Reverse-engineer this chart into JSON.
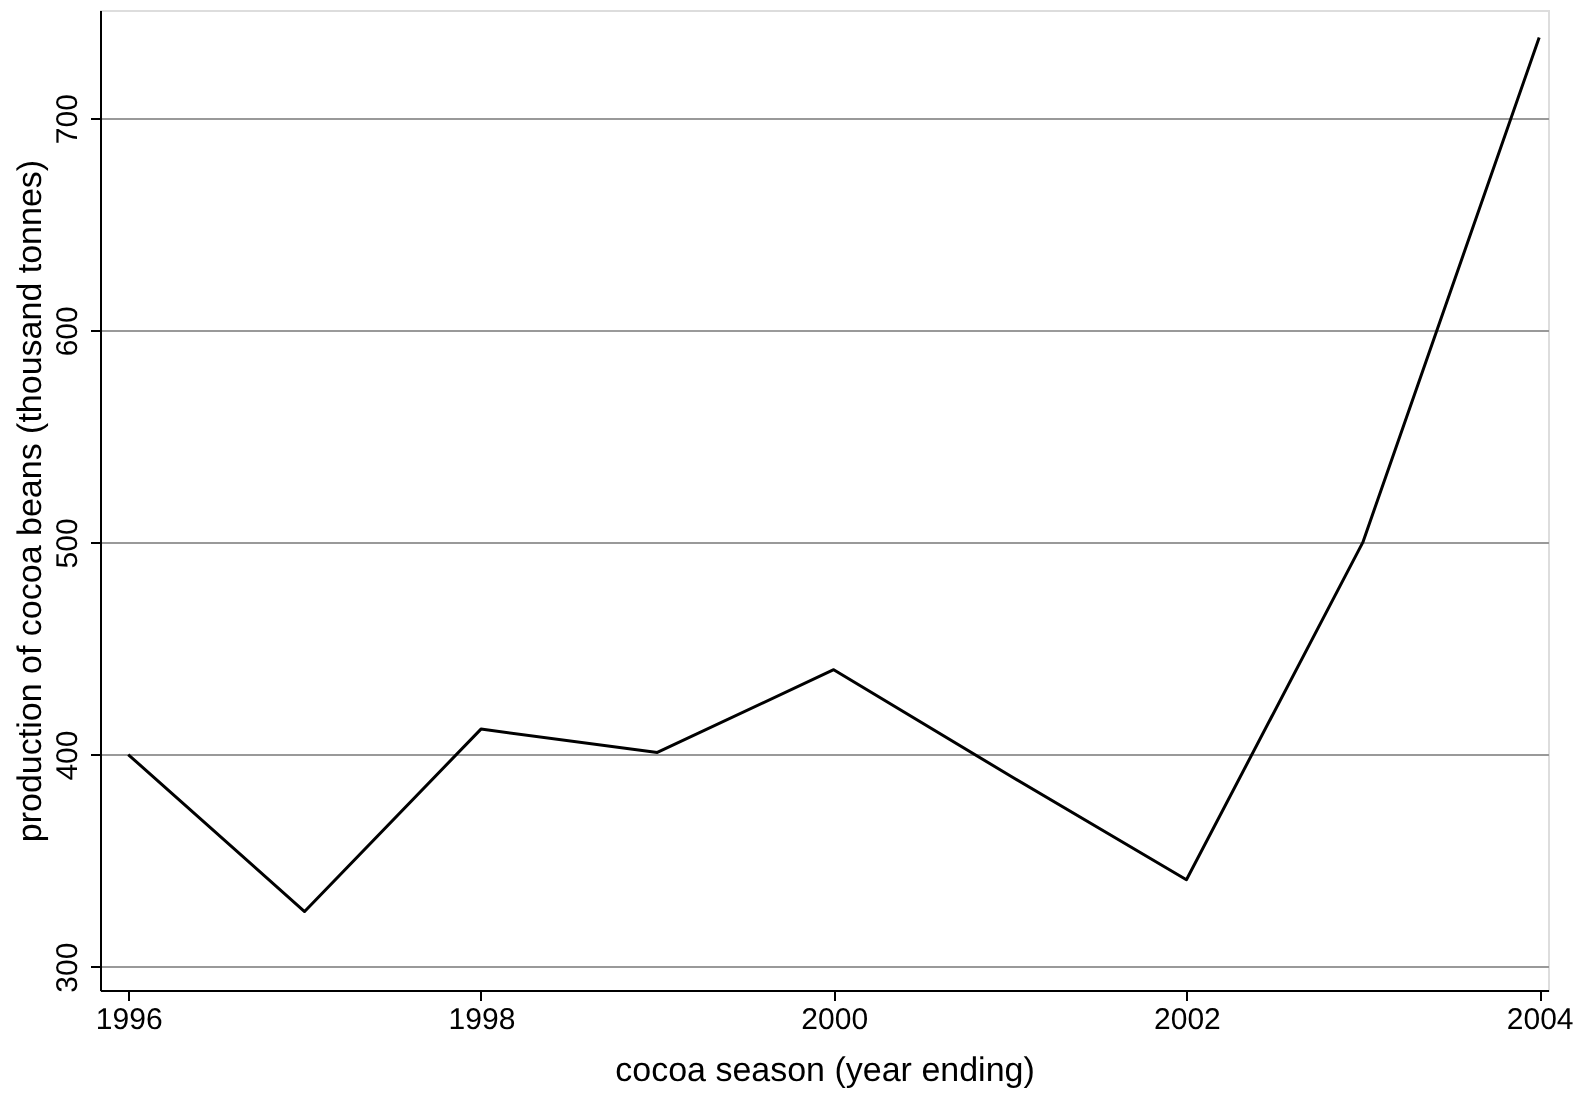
{
  "chart_data": {
    "type": "line",
    "xlabel": "cocoa season (year ending)",
    "ylabel": "production of cocoa beans (thousand tonnes)",
    "x": [
      1996,
      1997,
      1998,
      1999,
      2000,
      2001,
      2002,
      2003,
      2004
    ],
    "values": [
      400,
      326,
      412,
      401,
      440,
      390,
      341,
      500,
      738
    ],
    "color": "#000000",
    "xlim": [
      1995.84,
      2004.05
    ],
    "xticks": [
      1996,
      1998,
      2000,
      2002,
      2004
    ],
    "ylim": [
      289,
      751
    ],
    "yticks": [
      300,
      400,
      500,
      600,
      700
    ],
    "grid": "y",
    "marker": "none",
    "line_style": "solid"
  }
}
